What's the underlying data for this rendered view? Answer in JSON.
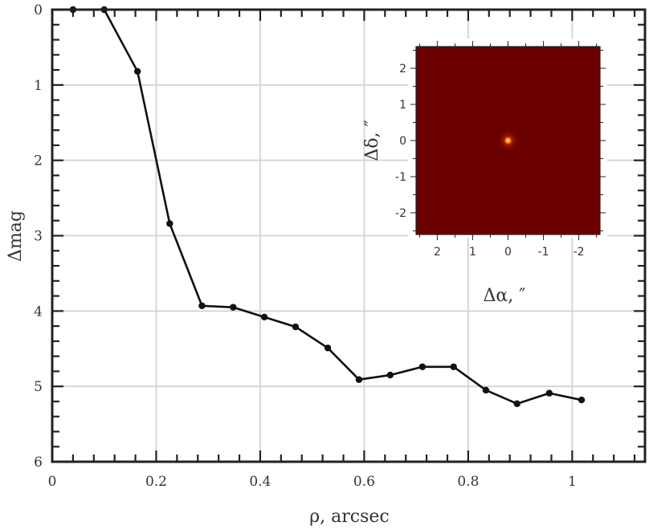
{
  "chart_data": [
    {
      "type": "line",
      "xlabel": "ρ, arcsec",
      "ylabel": "Δmag",
      "xlim": [
        0,
        1.14
      ],
      "ylim": [
        0,
        6
      ],
      "y_inverted": true,
      "grid": true,
      "x_ticks": [
        0,
        0.2,
        0.4,
        0.6,
        0.8,
        1
      ],
      "x_tick_labels": [
        "0",
        "0.2",
        "0.4",
        "0.6",
        "0.8",
        "1"
      ],
      "y_ticks": [
        0,
        1,
        2,
        3,
        4,
        5,
        6
      ],
      "y_tick_labels": [
        "0",
        "1",
        "2",
        "3",
        "4",
        "5",
        "6"
      ],
      "series": [
        {
          "color": "#111111",
          "marker": "circle",
          "x": [
            0.04,
            0.1,
            0.164,
            0.226,
            0.288,
            0.348,
            0.408,
            0.468,
            0.53,
            0.59,
            0.65,
            0.712,
            0.772,
            0.834,
            0.894,
            0.956,
            1.018
          ],
          "y": [
            0.0,
            0.0,
            0.82,
            2.84,
            3.93,
            3.95,
            4.08,
            4.21,
            4.49,
            4.91,
            4.85,
            4.74,
            4.74,
            5.05,
            5.23,
            5.09,
            5.18
          ]
        }
      ]
    },
    {
      "type": "heatmap",
      "description_of_content": "speckle image",
      "xlabel": "Δα, ″",
      "ylabel": "Δδ, ″",
      "xlim": [
        2.6,
        -2.6
      ],
      "ylim": [
        -2.6,
        2.6
      ],
      "x_ticks": [
        2,
        1,
        0,
        -1,
        -2
      ],
      "x_tick_labels": [
        "2",
        "1",
        "0",
        "-1",
        "-2"
      ],
      "y_ticks": [
        2,
        1,
        0,
        -1,
        -2
      ],
      "y_tick_labels": [
        "2",
        "1",
        "0",
        "-1",
        "-2"
      ],
      "background_color": "#6b0000",
      "source": {
        "x": 0,
        "y": 0
      }
    }
  ]
}
